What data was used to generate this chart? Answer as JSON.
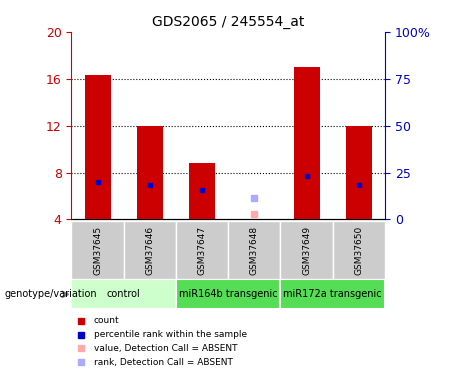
{
  "title": "GDS2065 / 245554_at",
  "samples": [
    "GSM37645",
    "GSM37646",
    "GSM37647",
    "GSM37648",
    "GSM37649",
    "GSM37650"
  ],
  "red_bar_heights": [
    16.3,
    12.0,
    8.8,
    0,
    17.0,
    12.0
  ],
  "blue_dot_y": [
    7.2,
    6.9,
    6.5,
    0,
    7.7,
    6.9
  ],
  "absent_value_y": [
    0,
    0,
    0,
    4.5,
    0,
    0
  ],
  "absent_rank_y": [
    0,
    0,
    0,
    5.8,
    0,
    0
  ],
  "ylim": [
    4,
    20
  ],
  "yticks_left": [
    4,
    8,
    12,
    16,
    20
  ],
  "yticks_right_labels": [
    "0",
    "25",
    "50",
    "75",
    "100%"
  ],
  "yticks_right_vals": [
    4,
    8,
    12,
    16,
    20
  ],
  "grid_lines": [
    8,
    12,
    16
  ],
  "bar_bottom": 4,
  "bar_width": 0.5,
  "group_colors": [
    "#ccffcc",
    "#55dd55",
    "#55dd55"
  ],
  "group_labels": [
    "control",
    "miR164b transgenic",
    "miR172a transgenic"
  ],
  "group_ranges": [
    [
      0,
      2
    ],
    [
      2,
      4
    ],
    [
      4,
      6
    ]
  ],
  "sample_bg_color": "#cccccc",
  "plot_bg_color": "#ffffff",
  "fig_bg_color": "#ffffff",
  "red_color": "#cc0000",
  "blue_color": "#0000cc",
  "absent_value_color": "#ffaaaa",
  "absent_rank_color": "#aaaaff",
  "left_tick_color": "#cc0000",
  "right_tick_color": "#0000cc",
  "legend_labels": [
    "count",
    "percentile rank within the sample",
    "value, Detection Call = ABSENT",
    "rank, Detection Call = ABSENT"
  ],
  "legend_colors": [
    "#cc0000",
    "#0000cc",
    "#ffaaaa",
    "#aaaaff"
  ]
}
